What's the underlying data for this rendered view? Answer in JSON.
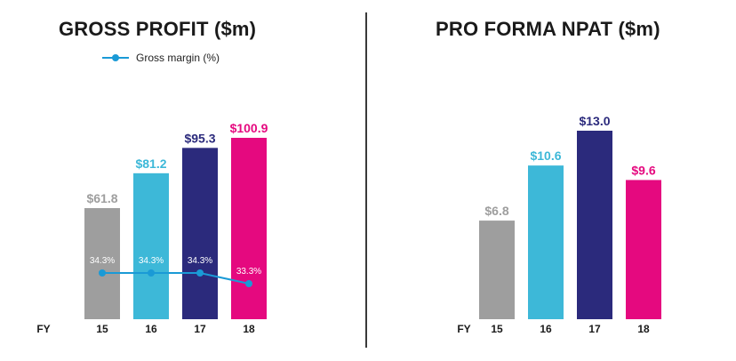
{
  "chart_data": [
    {
      "type": "bar",
      "title": "GROSS PROFIT ($m)",
      "axis_prefix": "FY",
      "categories": [
        "15",
        "16",
        "17",
        "18"
      ],
      "values": [
        61.8,
        81.2,
        95.3,
        100.9
      ],
      "value_labels": [
        "$61.8",
        "$81.2",
        "$95.3",
        "$100.9"
      ],
      "bar_colors": [
        "#9e9e9e",
        "#3db8d8",
        "#2b2a7c",
        "#e5097f"
      ],
      "label_colors": [
        "#9e9e9e",
        "#3db8d8",
        "#2b2a7c",
        "#e5097f"
      ],
      "ylim": [
        0,
        100.9
      ],
      "line_series": {
        "name": "Gross margin (%)",
        "color": "#1a9ad6",
        "values": [
          34.3,
          34.3,
          34.3,
          33.3
        ],
        "labels": [
          "34.3%",
          "34.3%",
          "34.3%",
          "33.3%"
        ]
      }
    },
    {
      "type": "bar",
      "title": "PRO FORMA NPAT ($m)",
      "axis_prefix": "FY",
      "categories": [
        "15",
        "16",
        "17",
        "18"
      ],
      "values": [
        6.8,
        10.6,
        13.0,
        9.6
      ],
      "value_labels": [
        "$6.8",
        "$10.6",
        "$13.0",
        "$9.6"
      ],
      "bar_colors": [
        "#9e9e9e",
        "#3db8d8",
        "#2b2a7c",
        "#e5097f"
      ],
      "label_colors": [
        "#9e9e9e",
        "#3db8d8",
        "#2b2a7c",
        "#e5097f"
      ],
      "ylim": [
        0,
        13.0
      ]
    }
  ]
}
